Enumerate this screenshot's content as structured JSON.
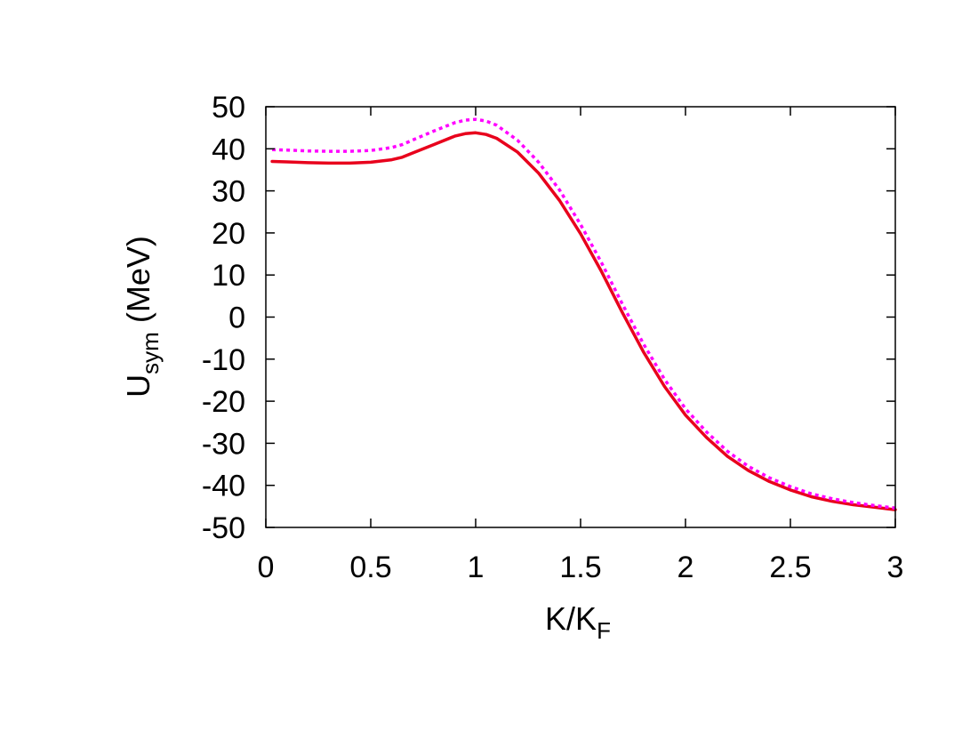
{
  "chart_data": {
    "type": "line",
    "title": "",
    "xlabel": "K/K",
    "xlabel_sub": "F",
    "ylabel": "U",
    "ylabel_sub": "sym",
    "ylabel_suffix": " (MeV)",
    "xlim": [
      0,
      3
    ],
    "ylim": [
      -50,
      50
    ],
    "xticks": [
      0,
      0.5,
      1,
      1.5,
      2,
      2.5,
      3
    ],
    "xtick_labels": [
      "0",
      "0.5",
      "1",
      "1.5",
      "2",
      "2.5",
      "3"
    ],
    "yticks": [
      -50,
      -40,
      -30,
      -20,
      -10,
      0,
      10,
      20,
      30,
      40,
      50
    ],
    "ytick_labels": [
      "-50",
      "-40",
      "-30",
      "-20",
      "-10",
      "0",
      "10",
      "20",
      "30",
      "40",
      "50"
    ],
    "grid": false,
    "legend": "none",
    "series": [
      {
        "color": "#e8001c",
        "style": "solid",
        "x": [
          0.03,
          0.1,
          0.2,
          0.3,
          0.4,
          0.5,
          0.6,
          0.65,
          0.7,
          0.8,
          0.9,
          0.95,
          1.0,
          1.05,
          1.1,
          1.2,
          1.3,
          1.4,
          1.5,
          1.6,
          1.7,
          1.8,
          1.9,
          2.0,
          2.1,
          2.2,
          2.3,
          2.4,
          2.5,
          2.6,
          2.7,
          2.8,
          2.9,
          3.0
        ],
        "y": [
          37.0,
          36.9,
          36.7,
          36.6,
          36.6,
          36.8,
          37.4,
          38.0,
          39.0,
          41.0,
          43.0,
          43.6,
          43.8,
          43.4,
          42.5,
          39.2,
          34.2,
          27.7,
          19.8,
          10.8,
          1.0,
          -8.3,
          -16.5,
          -23.3,
          -28.6,
          -33.1,
          -36.5,
          -39.1,
          -41.1,
          -42.7,
          -43.8,
          -44.6,
          -45.2,
          -45.8
        ]
      },
      {
        "color": "#ff00ff",
        "style": "dotted",
        "x": [
          0.03,
          0.1,
          0.2,
          0.3,
          0.4,
          0.5,
          0.6,
          0.65,
          0.7,
          0.8,
          0.9,
          0.95,
          1.0,
          1.05,
          1.1,
          1.2,
          1.3,
          1.4,
          1.5,
          1.6,
          1.7,
          1.8,
          1.9,
          2.0,
          2.1,
          2.2,
          2.3,
          2.4,
          2.5,
          2.6,
          2.7,
          2.8,
          2.9,
          3.0
        ],
        "y": [
          39.8,
          39.7,
          39.5,
          39.4,
          39.4,
          39.6,
          40.3,
          41.0,
          42.1,
          44.2,
          46.2,
          46.8,
          47.0,
          46.6,
          45.6,
          42.0,
          36.8,
          30.2,
          22.0,
          12.9,
          3.0,
          -6.4,
          -14.8,
          -21.8,
          -27.3,
          -31.9,
          -35.5,
          -38.2,
          -40.3,
          -42.0,
          -43.2,
          -44.1,
          -44.8,
          -45.4
        ]
      }
    ]
  }
}
